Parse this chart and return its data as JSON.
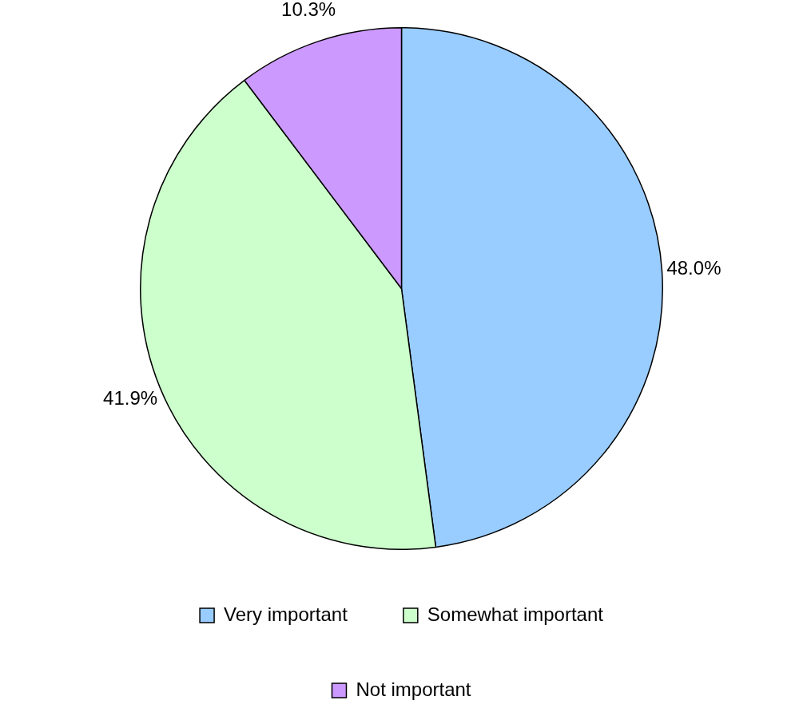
{
  "chart_data": {
    "type": "pie",
    "categories": [
      "Very important",
      "Somewhat important",
      "Not important"
    ],
    "values": [
      48.0,
      41.9,
      10.3
    ],
    "colors": [
      "#99ccff",
      "#ccffcc",
      "#cc99ff"
    ],
    "value_labels": [
      "48.0%",
      "41.9%",
      "10.3%"
    ],
    "legend": "bottom"
  }
}
